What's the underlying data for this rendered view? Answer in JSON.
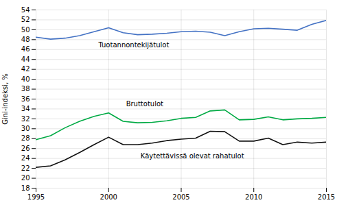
{
  "chart_data": {
    "type": "line",
    "x": [
      1995,
      1996,
      1997,
      1998,
      1999,
      2000,
      2001,
      2002,
      2003,
      2004,
      2005,
      2006,
      2007,
      2008,
      2009,
      2010,
      2011,
      2012,
      2013,
      2014,
      2015
    ],
    "series": [
      {
        "name": "Tuotannontekijätulot",
        "color": "#4472C4",
        "values": [
          48.5,
          48.1,
          48.3,
          48.8,
          49.6,
          50.4,
          49.4,
          49.0,
          49.1,
          49.3,
          49.6,
          49.7,
          49.5,
          48.8,
          49.6,
          50.2,
          50.3,
          50.1,
          49.9,
          51.1,
          51.9
        ]
      },
      {
        "name": "Bruttotulot",
        "color": "#00AA44",
        "values": [
          27.8,
          28.6,
          30.2,
          31.5,
          32.5,
          33.2,
          31.5,
          31.2,
          31.3,
          31.6,
          32.1,
          32.3,
          33.6,
          33.8,
          31.8,
          31.9,
          32.4,
          31.8,
          32.0,
          32.1,
          32.3
        ]
      },
      {
        "name": "Käytettävissä olevat rahatulot",
        "color": "#111111",
        "values": [
          22.2,
          22.5,
          23.7,
          25.2,
          26.8,
          28.3,
          26.8,
          26.8,
          27.1,
          27.6,
          27.9,
          28.1,
          29.5,
          29.4,
          27.5,
          27.5,
          28.1,
          26.8,
          27.3,
          27.1,
          27.3
        ]
      }
    ],
    "ylabel": "Gini-indeksi, %",
    "xlim": [
      1995,
      2015
    ],
    "xticks": [
      1995,
      2000,
      2005,
      2010,
      2015
    ],
    "ylim": [
      18,
      54
    ],
    "yticks": [
      18,
      20,
      22,
      24,
      26,
      28,
      30,
      32,
      34,
      36,
      38,
      40,
      42,
      44,
      46,
      48,
      50,
      52,
      54
    ],
    "grid": true,
    "annotations": [
      {
        "text": "Tuotannontekijätulot",
        "x": 1999.3,
        "y": 46.4
      },
      {
        "text": "Bruttotulot",
        "x": 2001.2,
        "y": 34.5
      },
      {
        "text": "Käytettävissä olevat rahatulot",
        "x": 2002.2,
        "y": 24.0
      }
    ]
  }
}
